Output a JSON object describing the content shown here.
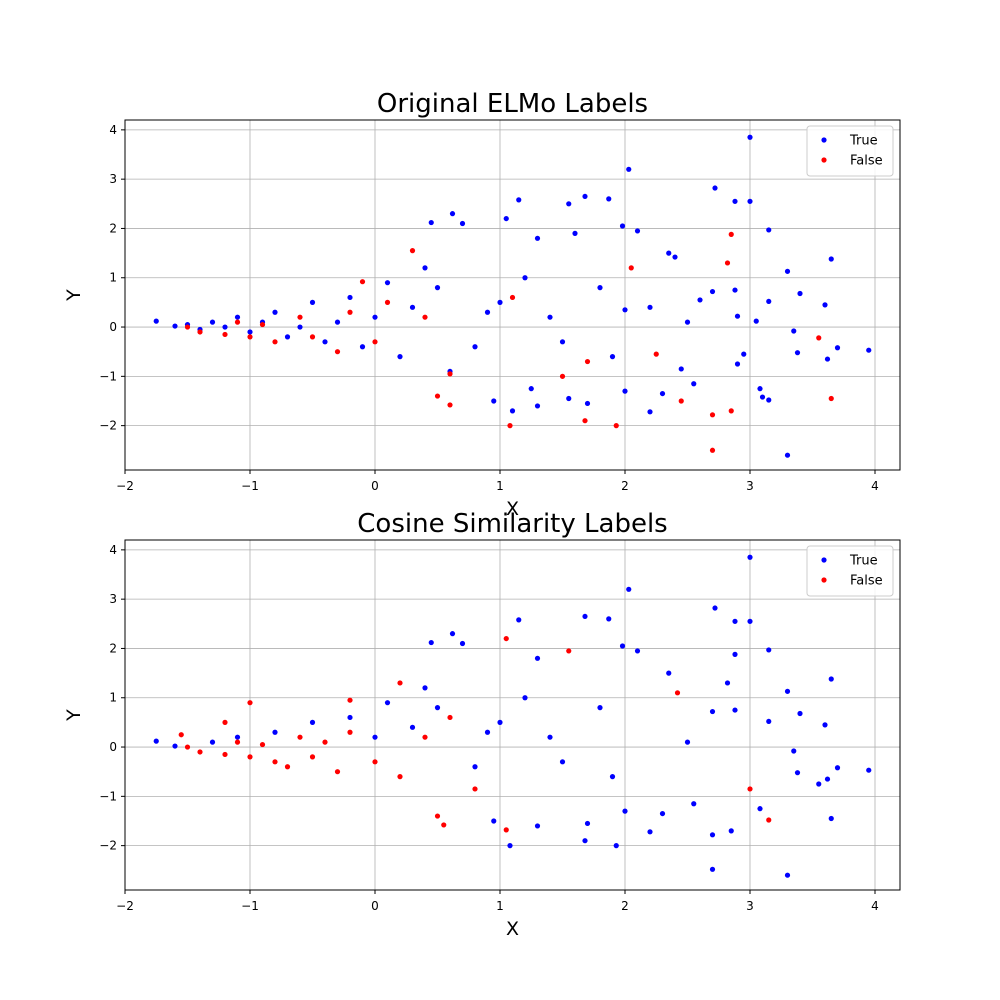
{
  "chart_data": [
    {
      "type": "scatter",
      "title": "Original ELMo Labels",
      "xlabel": "X",
      "ylabel": "Y",
      "xlim": [
        -2.0,
        4.2
      ],
      "ylim": [
        -2.9,
        4.2
      ],
      "xticks": [
        -2,
        -1,
        0,
        1,
        2,
        3,
        4
      ],
      "yticks": [
        -2,
        -1,
        0,
        1,
        2,
        3,
        4
      ],
      "grid": true,
      "legend": "top-right",
      "series": [
        {
          "name": "True",
          "color": "#0000ff",
          "points": [
            [
              3.0,
              3.85
            ],
            [
              2.03,
              3.2
            ],
            [
              2.72,
              2.82
            ],
            [
              1.68,
              2.65
            ],
            [
              1.87,
              2.6
            ],
            [
              2.88,
              2.55
            ],
            [
              3.0,
              2.55
            ],
            [
              1.15,
              2.58
            ],
            [
              0.62,
              2.3
            ],
            [
              1.55,
              2.5
            ],
            [
              1.98,
              2.05
            ],
            [
              2.1,
              1.95
            ],
            [
              3.15,
              1.97
            ],
            [
              0.45,
              2.12
            ],
            [
              1.05,
              2.2
            ],
            [
              0.7,
              2.1
            ],
            [
              1.3,
              1.8
            ],
            [
              1.6,
              1.9
            ],
            [
              2.35,
              1.5
            ],
            [
              2.4,
              1.42
            ],
            [
              3.3,
              1.13
            ],
            [
              3.65,
              1.38
            ],
            [
              3.4,
              0.68
            ],
            [
              3.6,
              0.45
            ],
            [
              3.15,
              0.52
            ],
            [
              2.88,
              0.75
            ],
            [
              2.7,
              0.72
            ],
            [
              2.9,
              0.22
            ],
            [
              3.05,
              0.12
            ],
            [
              3.35,
              -0.08
            ],
            [
              3.7,
              -0.42
            ],
            [
              3.95,
              -0.47
            ],
            [
              3.38,
              -0.52
            ],
            [
              3.62,
              -0.65
            ],
            [
              3.3,
              -2.6
            ],
            [
              3.08,
              -1.25
            ],
            [
              3.15,
              -1.48
            ],
            [
              3.1,
              -1.42
            ],
            [
              2.95,
              -0.55
            ],
            [
              2.9,
              -0.75
            ],
            [
              2.55,
              -1.15
            ],
            [
              2.45,
              -0.85
            ],
            [
              2.2,
              -1.72
            ],
            [
              2.3,
              -1.35
            ],
            [
              2.6,
              0.55
            ],
            [
              2.2,
              0.4
            ],
            [
              2.0,
              0.35
            ],
            [
              1.7,
              -1.55
            ],
            [
              1.55,
              -1.45
            ],
            [
              1.3,
              -1.6
            ],
            [
              1.1,
              -1.7
            ],
            [
              0.95,
              -1.5
            ],
            [
              1.25,
              -1.25
            ],
            [
              2.0,
              -1.3
            ],
            [
              1.9,
              -0.6
            ],
            [
              1.5,
              -0.3
            ],
            [
              1.0,
              0.5
            ],
            [
              1.2,
              1.0
            ],
            [
              0.9,
              0.3
            ],
            [
              0.8,
              -0.4
            ],
            [
              1.4,
              0.2
            ],
            [
              1.8,
              0.8
            ],
            [
              2.5,
              0.1
            ],
            [
              0.5,
              0.8
            ],
            [
              0.6,
              -0.9
            ],
            [
              0.4,
              1.2
            ],
            [
              0.3,
              0.4
            ],
            [
              0.2,
              -0.6
            ],
            [
              0.1,
              0.9
            ],
            [
              0.0,
              0.2
            ],
            [
              -0.1,
              -0.4
            ],
            [
              -0.2,
              0.6
            ],
            [
              -0.3,
              0.1
            ],
            [
              -0.4,
              -0.3
            ],
            [
              -0.5,
              0.5
            ],
            [
              -0.6,
              0.0
            ],
            [
              -0.7,
              -0.2
            ],
            [
              -0.8,
              0.3
            ],
            [
              -0.9,
              0.1
            ],
            [
              -1.0,
              -0.1
            ],
            [
              -1.1,
              0.2
            ],
            [
              -1.2,
              0.0
            ],
            [
              -1.3,
              0.1
            ],
            [
              -1.4,
              -0.05
            ],
            [
              -1.5,
              0.05
            ],
            [
              -1.6,
              0.02
            ],
            [
              -1.75,
              0.12
            ]
          ]
        },
        {
          "name": "False",
          "color": "#ff0000",
          "points": [
            [
              2.85,
              1.88
            ],
            [
              2.82,
              1.3
            ],
            [
              2.05,
              1.2
            ],
            [
              3.65,
              -1.45
            ],
            [
              3.55,
              -0.22
            ],
            [
              2.7,
              -1.78
            ],
            [
              2.7,
              -2.5
            ],
            [
              2.85,
              -1.7
            ],
            [
              1.93,
              -2.0
            ],
            [
              1.68,
              -1.9
            ],
            [
              1.08,
              -2.0
            ],
            [
              0.6,
              -1.58
            ],
            [
              0.5,
              -1.4
            ],
            [
              0.3,
              1.55
            ],
            [
              -0.1,
              0.92
            ],
            [
              0.1,
              0.5
            ],
            [
              0.6,
              -0.95
            ],
            [
              1.7,
              -0.7
            ],
            [
              2.25,
              -0.55
            ],
            [
              2.45,
              -1.5
            ],
            [
              -0.5,
              -0.2
            ],
            [
              -0.8,
              -0.3
            ],
            [
              -1.0,
              -0.2
            ],
            [
              -1.2,
              -0.15
            ],
            [
              -0.3,
              -0.5
            ],
            [
              -0.6,
              0.2
            ],
            [
              0.0,
              -0.3
            ],
            [
              -1.4,
              -0.1
            ],
            [
              -0.9,
              0.05
            ],
            [
              -0.2,
              0.3
            ],
            [
              0.4,
              0.2
            ],
            [
              1.1,
              0.6
            ],
            [
              1.5,
              -1.0
            ],
            [
              -1.5,
              0.0
            ],
            [
              -1.1,
              0.1
            ]
          ]
        }
      ]
    },
    {
      "type": "scatter",
      "title": "Cosine Similarity Labels",
      "xlabel": "X",
      "ylabel": "Y",
      "xlim": [
        -2.0,
        4.2
      ],
      "ylim": [
        -2.9,
        4.2
      ],
      "xticks": [
        -2,
        -1,
        0,
        1,
        2,
        3,
        4
      ],
      "yticks": [
        -2,
        -1,
        0,
        1,
        2,
        3,
        4
      ],
      "grid": true,
      "legend": "top-right",
      "series": [
        {
          "name": "True",
          "color": "#0000ff",
          "points": [
            [
              3.0,
              3.85
            ],
            [
              2.03,
              3.2
            ],
            [
              2.72,
              2.82
            ],
            [
              1.68,
              2.65
            ],
            [
              1.87,
              2.6
            ],
            [
              2.88,
              2.55
            ],
            [
              3.0,
              2.55
            ],
            [
              1.15,
              2.58
            ],
            [
              0.62,
              2.3
            ],
            [
              1.98,
              2.05
            ],
            [
              2.1,
              1.95
            ],
            [
              3.15,
              1.97
            ],
            [
              0.45,
              2.12
            ],
            [
              0.7,
              2.1
            ],
            [
              1.3,
              1.8
            ],
            [
              2.88,
              1.88
            ],
            [
              2.82,
              1.3
            ],
            [
              2.35,
              1.5
            ],
            [
              3.3,
              1.13
            ],
            [
              3.65,
              1.38
            ],
            [
              3.4,
              0.68
            ],
            [
              3.6,
              0.45
            ],
            [
              3.15,
              0.52
            ],
            [
              2.88,
              0.75
            ],
            [
              2.7,
              0.72
            ],
            [
              3.35,
              -0.08
            ],
            [
              3.7,
              -0.42
            ],
            [
              3.95,
              -0.47
            ],
            [
              3.38,
              -0.52
            ],
            [
              3.62,
              -0.65
            ],
            [
              3.3,
              -2.6
            ],
            [
              2.7,
              -2.48
            ],
            [
              2.7,
              -1.78
            ],
            [
              2.85,
              -1.7
            ],
            [
              3.65,
              -1.45
            ],
            [
              3.08,
              -1.25
            ],
            [
              3.55,
              -0.75
            ],
            [
              2.55,
              -1.15
            ],
            [
              2.2,
              -1.72
            ],
            [
              2.3,
              -1.35
            ],
            [
              1.93,
              -2.0
            ],
            [
              1.68,
              -1.9
            ],
            [
              1.08,
              -2.0
            ],
            [
              1.7,
              -1.55
            ],
            [
              1.3,
              -1.6
            ],
            [
              0.95,
              -1.5
            ],
            [
              2.0,
              -1.3
            ],
            [
              1.9,
              -0.6
            ],
            [
              1.5,
              -0.3
            ],
            [
              1.0,
              0.5
            ],
            [
              1.2,
              1.0
            ],
            [
              0.9,
              0.3
            ],
            [
              0.8,
              -0.4
            ],
            [
              1.4,
              0.2
            ],
            [
              1.8,
              0.8
            ],
            [
              2.5,
              0.1
            ],
            [
              0.5,
              0.8
            ],
            [
              0.4,
              1.2
            ],
            [
              0.3,
              0.4
            ],
            [
              0.1,
              0.9
            ],
            [
              0.0,
              0.2
            ],
            [
              -0.2,
              0.6
            ],
            [
              -0.5,
              0.5
            ],
            [
              -0.8,
              0.3
            ],
            [
              -1.1,
              0.2
            ],
            [
              -1.3,
              0.1
            ],
            [
              -1.6,
              0.02
            ],
            [
              -1.75,
              0.12
            ]
          ]
        },
        {
          "name": "False",
          "color": "#ff0000",
          "points": [
            [
              1.05,
              2.2
            ],
            [
              1.55,
              1.95
            ],
            [
              2.42,
              1.1
            ],
            [
              3.0,
              -0.85
            ],
            [
              3.15,
              -1.48
            ],
            [
              1.05,
              -1.68
            ],
            [
              0.55,
              -1.58
            ],
            [
              0.5,
              -1.4
            ],
            [
              0.2,
              1.3
            ],
            [
              -1.0,
              0.9
            ],
            [
              -0.2,
              0.95
            ],
            [
              0.6,
              0.6
            ],
            [
              -0.5,
              -0.2
            ],
            [
              -0.8,
              -0.3
            ],
            [
              -1.0,
              -0.2
            ],
            [
              -1.2,
              -0.15
            ],
            [
              -0.3,
              -0.5
            ],
            [
              -0.6,
              0.2
            ],
            [
              0.0,
              -0.3
            ],
            [
              -1.4,
              -0.1
            ],
            [
              -0.9,
              0.05
            ],
            [
              -0.2,
              0.3
            ],
            [
              0.4,
              0.2
            ],
            [
              -1.5,
              0.0
            ],
            [
              -1.1,
              0.1
            ],
            [
              -0.7,
              -0.4
            ],
            [
              -0.4,
              0.1
            ],
            [
              0.2,
              -0.6
            ],
            [
              0.8,
              -0.85
            ],
            [
              -1.55,
              0.25
            ],
            [
              -1.2,
              0.5
            ]
          ]
        }
      ]
    }
  ]
}
